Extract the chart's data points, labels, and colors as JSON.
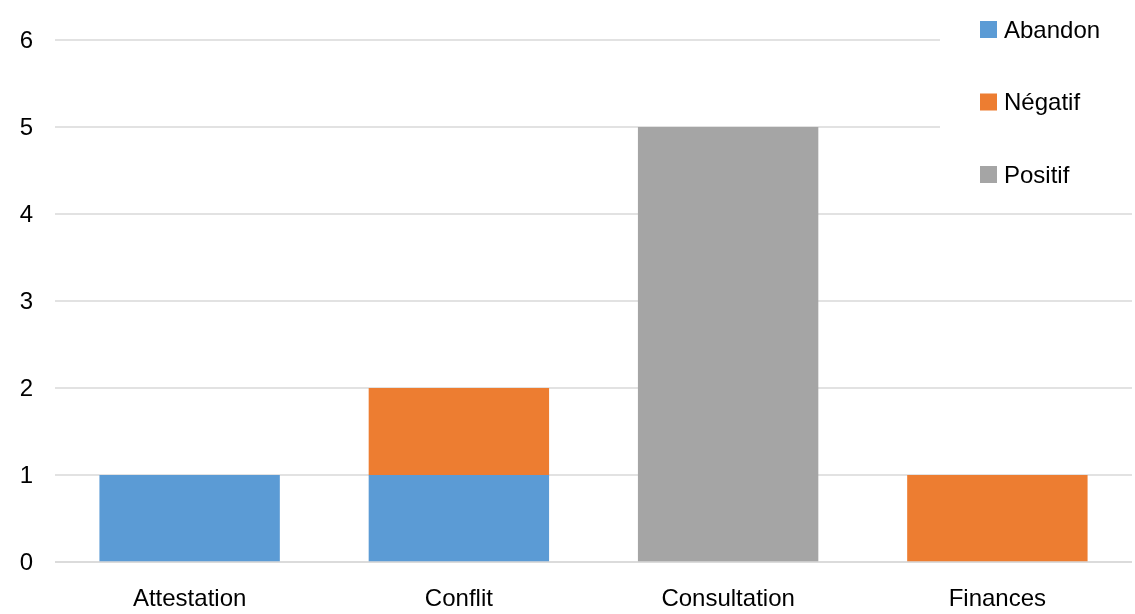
{
  "chart_data": {
    "type": "bar",
    "stacked": true,
    "categories": [
      "Attestation",
      "Conflit",
      "Consultation",
      "Finances"
    ],
    "series": [
      {
        "name": "Abandon",
        "color": "#5b9bd5",
        "values": [
          1,
          1,
          null,
          null
        ]
      },
      {
        "name": "Négatif",
        "color": "#ed7d31",
        "values": [
          null,
          1,
          null,
          1
        ]
      },
      {
        "name": "Positif",
        "color": "#a5a5a5",
        "values": [
          null,
          null,
          5,
          null
        ]
      }
    ],
    "ylim": [
      0,
      6
    ],
    "yticks": [
      0,
      1,
      2,
      3,
      4,
      5,
      6
    ],
    "grid": "y",
    "legend": "top right"
  }
}
